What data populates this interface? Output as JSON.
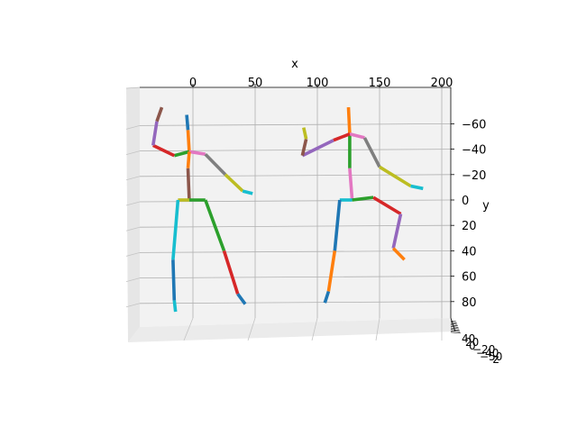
{
  "chart_data": {
    "type": "line",
    "projection": "3d",
    "title": "",
    "xlabel": "x",
    "ylabel": "y",
    "zlabel": "z",
    "xlim": [
      -30,
      200
    ],
    "ylim": [
      -70,
      95
    ],
    "y_axis_inverted": true,
    "grid": true,
    "legend": "none",
    "x_ticks": [
      0,
      50,
      100,
      150,
      200
    ],
    "x_tick_labels": [
      "0",
      "50",
      "100",
      "150",
      "200"
    ],
    "y_ticks": [
      -60,
      -40,
      -20,
      0,
      20,
      40,
      60,
      80
    ],
    "y_tick_labels": [
      "−60",
      "−40",
      "−20",
      "0",
      "20",
      "40",
      "60",
      "80"
    ],
    "z_tick_labels": [
      "40",
      "20",
      "0",
      "−20",
      "−40",
      "−50"
    ],
    "figures": [
      {
        "segments": [
          {
            "color": "#1f77b4",
            "points": [
              [
                -5,
                -67
              ],
              [
                -4,
                -55
              ]
            ]
          },
          {
            "color": "#ff7f0e",
            "points": [
              [
                -4,
                -55
              ],
              [
                -3,
                -38
              ]
            ]
          },
          {
            "color": "#2ca02c",
            "points": [
              [
                -3,
                -38
              ],
              [
                -15,
                -35
              ]
            ]
          },
          {
            "color": "#d62728",
            "points": [
              [
                -15,
                -35
              ],
              [
                -32,
                -43
              ]
            ]
          },
          {
            "color": "#9467bd",
            "points": [
              [
                -32,
                -43
              ],
              [
                -29,
                -62
              ]
            ]
          },
          {
            "color": "#8c564b",
            "points": [
              [
                -29,
                -62
              ],
              [
                -25,
                -73
              ]
            ]
          },
          {
            "color": "#e377c2",
            "points": [
              [
                -3,
                -38
              ],
              [
                10,
                -36
              ]
            ]
          },
          {
            "color": "#7f7f7f",
            "points": [
              [
                10,
                -36
              ],
              [
                26,
                -20
              ]
            ]
          },
          {
            "color": "#bcbd22",
            "points": [
              [
                26,
                -20
              ],
              [
                40,
                -7
              ]
            ]
          },
          {
            "color": "#17becf",
            "points": [
              [
                40,
                -7
              ],
              [
                48,
                -5
              ]
            ]
          },
          {
            "color": "#ff7f0e",
            "points": [
              [
                -3,
                -38
              ],
              [
                -4,
                -25
              ]
            ]
          },
          {
            "color": "#8c564b",
            "points": [
              [
                -4,
                -25
              ],
              [
                -3,
                0
              ]
            ]
          },
          {
            "color": "#bcbd22",
            "points": [
              [
                -3,
                0
              ],
              [
                -12,
                0
              ]
            ]
          },
          {
            "color": "#17becf",
            "points": [
              [
                -12,
                0
              ],
              [
                -16,
                47
              ]
            ]
          },
          {
            "color": "#1f77b4",
            "points": [
              [
                -16,
                47
              ],
              [
                -15,
                79
              ]
            ]
          },
          {
            "color": "#17becf",
            "points": [
              [
                -15,
                79
              ],
              [
                -14,
                88
              ]
            ]
          },
          {
            "color": "#2ca02c",
            "points": [
              [
                -3,
                0
              ],
              [
                10,
                0
              ]
            ]
          },
          {
            "color": "#2ca02c",
            "points": [
              [
                10,
                0
              ],
              [
                25,
                40
              ]
            ]
          },
          {
            "color": "#d62728",
            "points": [
              [
                25,
                40
              ],
              [
                36,
                74
              ]
            ]
          },
          {
            "color": "#1f77b4",
            "points": [
              [
                36,
                74
              ],
              [
                42,
                82
              ]
            ]
          }
        ]
      },
      {
        "segments": [
          {
            "color": "#ff7f0e",
            "points": [
              [
                125,
                -73
              ],
              [
                126,
                -52
              ]
            ]
          },
          {
            "color": "#2ca02c",
            "points": [
              [
                126,
                -52
              ],
              [
                126,
                -25
              ]
            ]
          },
          {
            "color": "#e377c2",
            "points": [
              [
                126,
                -52
              ],
              [
                138,
                -49
              ]
            ]
          },
          {
            "color": "#7f7f7f",
            "points": [
              [
                138,
                -49
              ],
              [
                150,
                -26
              ]
            ]
          },
          {
            "color": "#bcbd22",
            "points": [
              [
                150,
                -26
              ],
              [
                175,
                -11
              ]
            ]
          },
          {
            "color": "#17becf",
            "points": [
              [
                175,
                -11
              ],
              [
                185,
                -9
              ]
            ]
          },
          {
            "color": "#d62728",
            "points": [
              [
                126,
                -52
              ],
              [
                113,
                -47
              ]
            ]
          },
          {
            "color": "#9467bd",
            "points": [
              [
                113,
                -47
              ],
              [
                88,
                -35
              ]
            ]
          },
          {
            "color": "#8c564b",
            "points": [
              [
                88,
                -35
              ],
              [
                91,
                -48
              ]
            ]
          },
          {
            "color": "#bcbd22",
            "points": [
              [
                91,
                -48
              ],
              [
                89,
                -57
              ]
            ]
          },
          {
            "color": "#e377c2",
            "points": [
              [
                126,
                -25
              ],
              [
                128,
                0
              ]
            ]
          },
          {
            "color": "#17becf",
            "points": [
              [
                128,
                0
              ],
              [
                118,
                0
              ]
            ]
          },
          {
            "color": "#1f77b4",
            "points": [
              [
                118,
                0
              ],
              [
                114,
                40
              ]
            ]
          },
          {
            "color": "#ff7f0e",
            "points": [
              [
                114,
                40
              ],
              [
                109,
                72
              ]
            ]
          },
          {
            "color": "#1f77b4",
            "points": [
              [
                109,
                72
              ],
              [
                106,
                81
              ]
            ]
          },
          {
            "color": "#2ca02c",
            "points": [
              [
                128,
                0
              ],
              [
                145,
                -2
              ]
            ]
          },
          {
            "color": "#d62728",
            "points": [
              [
                145,
                -2
              ],
              [
                167,
                11
              ]
            ]
          },
          {
            "color": "#9467bd",
            "points": [
              [
                167,
                11
              ],
              [
                161,
                38
              ]
            ]
          },
          {
            "color": "#ff7f0e",
            "points": [
              [
                161,
                38
              ],
              [
                170,
                47
              ]
            ]
          }
        ]
      }
    ]
  }
}
